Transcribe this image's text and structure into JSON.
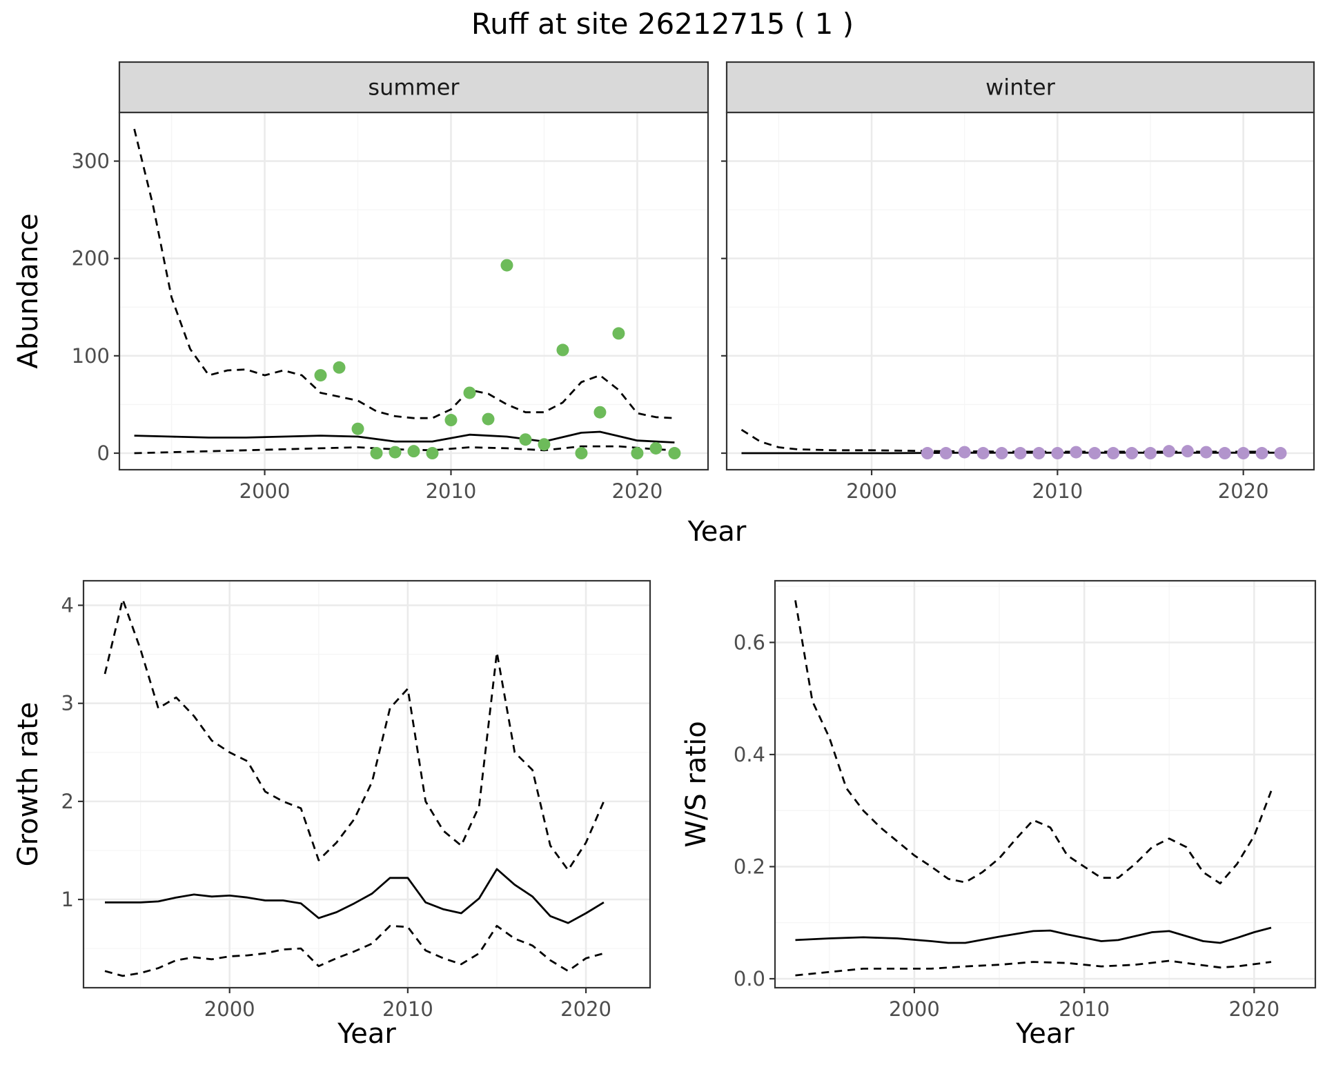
{
  "figure": {
    "title": "Ruff at site 26212715 ( 1 )",
    "shared_xlabel_top": "Year"
  },
  "colors": {
    "summer_points": "#6dbb5a",
    "winter_points": "#b294cc",
    "lines": "#000000",
    "grid_major": "#ebebeb",
    "grid_minor": "#f5f5f5",
    "strip_fill": "#d9d9d9",
    "panel_border": "#333333"
  },
  "chart_data": [
    {
      "id": "summer",
      "type": "scatter",
      "strip_label": "summer",
      "ylabel": "Abundance",
      "xlabel": "",
      "xlim": [
        1992.2,
        2023.8
      ],
      "ylim": [
        -17,
        350
      ],
      "x_ticks": [
        2000,
        2010,
        2020
      ],
      "y_ticks": [
        0,
        100,
        200,
        300
      ],
      "y_tick_labels": [
        "0",
        "100",
        "200",
        "300"
      ],
      "grid": true,
      "points": {
        "color": "#6dbb5a",
        "x": [
          2003,
          2004,
          2005,
          2006,
          2007,
          2008,
          2009,
          2010,
          2011,
          2012,
          2013,
          2014,
          2015,
          2016,
          2017,
          2018,
          2019,
          2020,
          2021,
          2022
        ],
        "y": [
          80,
          88,
          25,
          0,
          1,
          2,
          0,
          34,
          62,
          35,
          193,
          14,
          9,
          106,
          0,
          42,
          123,
          0,
          5,
          0
        ]
      },
      "series": [
        {
          "style": "solid",
          "x": [
            1993,
            1995,
            1997,
            1999,
            2001,
            2003,
            2005,
            2007,
            2009,
            2011,
            2013,
            2015,
            2017,
            2018,
            2020,
            2022
          ],
          "y": [
            18,
            17,
            16,
            16,
            17,
            18,
            17,
            12,
            12,
            19,
            17,
            12,
            21,
            22,
            13,
            11
          ]
        },
        {
          "style": "dashed",
          "x": [
            1993,
            1994,
            1995,
            1996,
            1997,
            1998,
            1999,
            2000,
            2001,
            2002,
            2003,
            2004,
            2005,
            2006,
            2007,
            2008,
            2009,
            2010,
            2011,
            2012,
            2013,
            2014,
            2015,
            2016,
            2017,
            2018,
            2019,
            2020,
            2021,
            2022
          ],
          "y": [
            333,
            255,
            160,
            107,
            80,
            85,
            86,
            80,
            85,
            80,
            62,
            58,
            54,
            43,
            38,
            36,
            36,
            45,
            65,
            61,
            50,
            42,
            42,
            52,
            73,
            80,
            65,
            41,
            37,
            36
          ]
        },
        {
          "style": "dashed",
          "x": [
            1993,
            1995,
            1997,
            1999,
            2001,
            2003,
            2005,
            2007,
            2009,
            2011,
            2013,
            2015,
            2017,
            2019,
            2021,
            2022
          ],
          "y": [
            0,
            1,
            2,
            3,
            4,
            5,
            6,
            4,
            3,
            6,
            5,
            3,
            7,
            7,
            4,
            3
          ]
        }
      ]
    },
    {
      "id": "winter",
      "type": "scatter",
      "strip_label": "winter",
      "ylabel": "",
      "xlabel": "",
      "xlim": [
        1992.2,
        2023.8
      ],
      "ylim": [
        -17,
        350
      ],
      "x_ticks": [
        2000,
        2010,
        2020
      ],
      "y_ticks": [
        0,
        100,
        200,
        300
      ],
      "y_tick_labels": [],
      "grid": true,
      "points": {
        "color": "#b294cc",
        "x": [
          2003,
          2004,
          2005,
          2006,
          2007,
          2008,
          2009,
          2010,
          2011,
          2012,
          2013,
          2014,
          2015,
          2016,
          2017,
          2018,
          2019,
          2020,
          2021,
          2022
        ],
        "y": [
          0,
          0,
          1,
          0,
          0,
          0,
          0,
          0,
          1,
          0,
          0,
          0,
          0,
          2,
          2,
          1,
          0,
          0,
          0,
          0
        ]
      },
      "series": [
        {
          "style": "solid",
          "x": [
            1993,
            1997,
            2001,
            2005,
            2010,
            2015,
            2022
          ],
          "y": [
            0,
            0,
            0,
            0.5,
            0.5,
            0.5,
            0.5
          ]
        },
        {
          "style": "dashed",
          "x": [
            1993,
            1994,
            1995,
            1996,
            1998,
            2000,
            2002,
            2004,
            2008,
            2015,
            2022
          ],
          "y": [
            24,
            12,
            6,
            4,
            3,
            3,
            2.5,
            2,
            1.5,
            1.5,
            1.5
          ]
        }
      ]
    },
    {
      "id": "growth",
      "type": "line",
      "strip_label": "",
      "ylabel": "Growth rate",
      "xlabel": "Year",
      "xlim": [
        1991.8,
        2023.6
      ],
      "ylim": [
        0.1,
        4.25
      ],
      "x_ticks": [
        2000,
        2010,
        2020
      ],
      "y_ticks": [
        1,
        2,
        3,
        4
      ],
      "y_tick_labels": [
        "1",
        "2",
        "3",
        "4"
      ],
      "grid": true,
      "series": [
        {
          "style": "solid",
          "x": [
            1993,
            1994,
            1995,
            1996,
            1997,
            1998,
            1999,
            2000,
            2001,
            2002,
            2003,
            2004,
            2005,
            2006,
            2007,
            2008,
            2009,
            2010,
            2011,
            2012,
            2013,
            2014,
            2015,
            2016,
            2017,
            2018,
            2019,
            2020,
            2021
          ],
          "y": [
            0.97,
            0.97,
            0.97,
            0.98,
            1.02,
            1.05,
            1.03,
            1.04,
            1.02,
            0.99,
            0.99,
            0.96,
            0.81,
            0.87,
            0.96,
            1.06,
            1.22,
            1.22,
            0.97,
            0.9,
            0.86,
            1.01,
            1.31,
            1.15,
            1.03,
            0.83,
            0.76,
            0.86,
            0.97
          ]
        },
        {
          "style": "dashed",
          "x": [
            1993,
            1994,
            1995,
            1996,
            1997,
            1998,
            1999,
            2000,
            2001,
            2002,
            2003,
            2004,
            2005,
            2006,
            2007,
            2008,
            2009,
            2010,
            2011,
            2012,
            2013,
            2014,
            2015,
            2016,
            2017,
            2018,
            2019,
            2020,
            2021
          ],
          "y": [
            3.3,
            4.06,
            3.55,
            2.95,
            3.06,
            2.87,
            2.62,
            2.5,
            2.41,
            2.1,
            2.0,
            1.93,
            1.4,
            1.58,
            1.82,
            2.2,
            2.95,
            3.15,
            2.0,
            1.7,
            1.55,
            1.95,
            3.52,
            2.5,
            2.32,
            1.55,
            1.3,
            1.58,
            2.0
          ]
        },
        {
          "style": "dashed",
          "x": [
            1993,
            1994,
            1995,
            1996,
            1997,
            1998,
            1999,
            2000,
            2001,
            2002,
            2003,
            2004,
            2005,
            2006,
            2007,
            2008,
            2009,
            2010,
            2011,
            2012,
            2013,
            2014,
            2015,
            2016,
            2017,
            2018,
            2019,
            2020,
            2021
          ],
          "y": [
            0.27,
            0.22,
            0.25,
            0.3,
            0.38,
            0.41,
            0.39,
            0.42,
            0.43,
            0.45,
            0.49,
            0.5,
            0.32,
            0.4,
            0.47,
            0.55,
            0.73,
            0.72,
            0.48,
            0.4,
            0.34,
            0.45,
            0.73,
            0.6,
            0.53,
            0.38,
            0.27,
            0.4,
            0.45
          ]
        }
      ]
    },
    {
      "id": "ratio",
      "type": "line",
      "strip_label": "",
      "ylabel": "W/S ratio",
      "xlabel": "Year",
      "xlim": [
        1991.8,
        2023.6
      ],
      "ylim": [
        -0.016,
        0.71
      ],
      "x_ticks": [
        2000,
        2010,
        2020
      ],
      "y_ticks": [
        0,
        0.2,
        0.4,
        0.6
      ],
      "y_tick_labels": [
        "0.0",
        "0.2",
        "0.4",
        "0.6"
      ],
      "grid": true,
      "series": [
        {
          "style": "solid",
          "x": [
            1993,
            1995,
            1997,
            1999,
            2001,
            2002,
            2003,
            2005,
            2007,
            2008,
            2009,
            2011,
            2012,
            2014,
            2015,
            2017,
            2018,
            2019,
            2020,
            2021
          ],
          "y": [
            0.069,
            0.072,
            0.074,
            0.072,
            0.067,
            0.064,
            0.064,
            0.075,
            0.085,
            0.086,
            0.079,
            0.067,
            0.069,
            0.083,
            0.085,
            0.067,
            0.064,
            0.073,
            0.083,
            0.091
          ]
        },
        {
          "style": "dashed",
          "x": [
            1993,
            1994,
            1995,
            1996,
            1997,
            1998,
            1999,
            2000,
            2001,
            2002,
            2003,
            2004,
            2005,
            2006,
            2007,
            2008,
            2009,
            2010,
            2011,
            2012,
            2013,
            2014,
            2015,
            2016,
            2017,
            2018,
            2019,
            2020,
            2021
          ],
          "y": [
            0.675,
            0.495,
            0.43,
            0.34,
            0.3,
            0.27,
            0.245,
            0.22,
            0.2,
            0.178,
            0.172,
            0.19,
            0.215,
            0.25,
            0.283,
            0.27,
            0.22,
            0.2,
            0.18,
            0.18,
            0.205,
            0.235,
            0.25,
            0.235,
            0.19,
            0.17,
            0.205,
            0.255,
            0.335
          ]
        },
        {
          "style": "dashed",
          "x": [
            1993,
            1995,
            1997,
            1999,
            2001,
            2003,
            2005,
            2007,
            2009,
            2011,
            2013,
            2015,
            2017,
            2018,
            2019,
            2021
          ],
          "y": [
            0.006,
            0.012,
            0.018,
            0.018,
            0.018,
            0.022,
            0.025,
            0.03,
            0.028,
            0.022,
            0.025,
            0.032,
            0.024,
            0.02,
            0.022,
            0.03
          ]
        }
      ]
    }
  ]
}
